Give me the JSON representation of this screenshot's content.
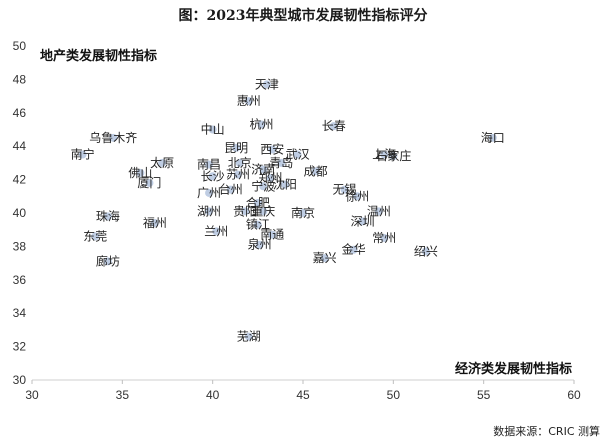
{
  "chart_data": {
    "type": "scatter",
    "title": "图：2023年典型城市发展韧性指标评分",
    "xlabel": "经济类发展韧性指标",
    "ylabel": "地产类发展韧性指标",
    "xlim": [
      30,
      60
    ],
    "ylim": [
      30,
      50
    ],
    "xticks": [
      30,
      35,
      40,
      45,
      50,
      55,
      60
    ],
    "yticks": [
      30,
      32,
      34,
      36,
      38,
      40,
      42,
      44,
      46,
      48,
      50
    ],
    "grid": false,
    "point_color": "#b8c8e0",
    "points": [
      {
        "name": "天津",
        "x": 43.0,
        "y": 47.7
      },
      {
        "name": "惠州",
        "x": 42.0,
        "y": 46.7
      },
      {
        "name": "乌鲁木齐",
        "x": 34.5,
        "y": 44.5
      },
      {
        "name": "中山",
        "x": 40.0,
        "y": 45.0
      },
      {
        "name": "杭州",
        "x": 42.7,
        "y": 45.3
      },
      {
        "name": "长春",
        "x": 46.7,
        "y": 45.2
      },
      {
        "name": "南宁",
        "x": 32.8,
        "y": 43.5
      },
      {
        "name": "昆明",
        "x": 41.3,
        "y": 43.9
      },
      {
        "name": "西安",
        "x": 43.3,
        "y": 43.8
      },
      {
        "name": "武汉",
        "x": 44.7,
        "y": 43.5
      },
      {
        "name": "上海",
        "x": 49.5,
        "y": 43.5
      },
      {
        "name": "海口",
        "x": 55.5,
        "y": 44.5
      },
      {
        "name": "石家庄",
        "x": 50.0,
        "y": 43.4
      },
      {
        "name": "太原",
        "x": 37.2,
        "y": 43.0
      },
      {
        "name": "南昌",
        "x": 39.8,
        "y": 42.9
      },
      {
        "name": "北京",
        "x": 41.5,
        "y": 43.0
      },
      {
        "name": "青岛",
        "x": 43.8,
        "y": 43.0
      },
      {
        "name": "佛山",
        "x": 36.0,
        "y": 42.4
      },
      {
        "name": "济南",
        "x": 42.8,
        "y": 42.6
      },
      {
        "name": "成都",
        "x": 45.7,
        "y": 42.5
      },
      {
        "name": "长沙",
        "x": 40.0,
        "y": 42.2
      },
      {
        "name": "苏州",
        "x": 41.4,
        "y": 42.3
      },
      {
        "name": "郑州",
        "x": 43.2,
        "y": 42.1
      },
      {
        "name": "厦门",
        "x": 36.5,
        "y": 41.8
      },
      {
        "name": "宁波",
        "x": 42.8,
        "y": 41.6
      },
      {
        "name": "沈阳",
        "x": 44.0,
        "y": 41.7
      },
      {
        "name": "广州",
        "x": 39.8,
        "y": 41.2
      },
      {
        "name": "台州",
        "x": 41.0,
        "y": 41.4
      },
      {
        "name": "无锡",
        "x": 47.3,
        "y": 41.4
      },
      {
        "name": "徐州",
        "x": 48.0,
        "y": 41.0
      },
      {
        "name": "合肥",
        "x": 42.5,
        "y": 40.6
      },
      {
        "name": "湖州",
        "x": 39.8,
        "y": 40.1
      },
      {
        "name": "贵阳",
        "x": 41.8,
        "y": 40.1
      },
      {
        "name": "重庆",
        "x": 42.8,
        "y": 40.1
      },
      {
        "name": "南京",
        "x": 45.0,
        "y": 40.0
      },
      {
        "name": "温州",
        "x": 49.2,
        "y": 40.1
      },
      {
        "name": "珠海",
        "x": 34.2,
        "y": 39.8
      },
      {
        "name": "福州",
        "x": 36.8,
        "y": 39.4
      },
      {
        "name": "深圳",
        "x": 48.3,
        "y": 39.5
      },
      {
        "name": "镇江",
        "x": 42.5,
        "y": 39.3
      },
      {
        "name": "兰州",
        "x": 40.2,
        "y": 38.9
      },
      {
        "name": "南通",
        "x": 43.3,
        "y": 38.7
      },
      {
        "name": "常州",
        "x": 49.5,
        "y": 38.5
      },
      {
        "name": "东莞",
        "x": 33.5,
        "y": 38.6
      },
      {
        "name": "泉州",
        "x": 42.6,
        "y": 38.1
      },
      {
        "name": "金华",
        "x": 47.8,
        "y": 37.8
      },
      {
        "name": "绍兴",
        "x": 51.8,
        "y": 37.7
      },
      {
        "name": "嘉兴",
        "x": 46.2,
        "y": 37.3
      },
      {
        "name": "廊坊",
        "x": 34.2,
        "y": 37.1
      },
      {
        "name": "芜湖",
        "x": 42.0,
        "y": 32.6
      }
    ]
  },
  "footer": {
    "source": "数据来源：CRIC 测算"
  }
}
